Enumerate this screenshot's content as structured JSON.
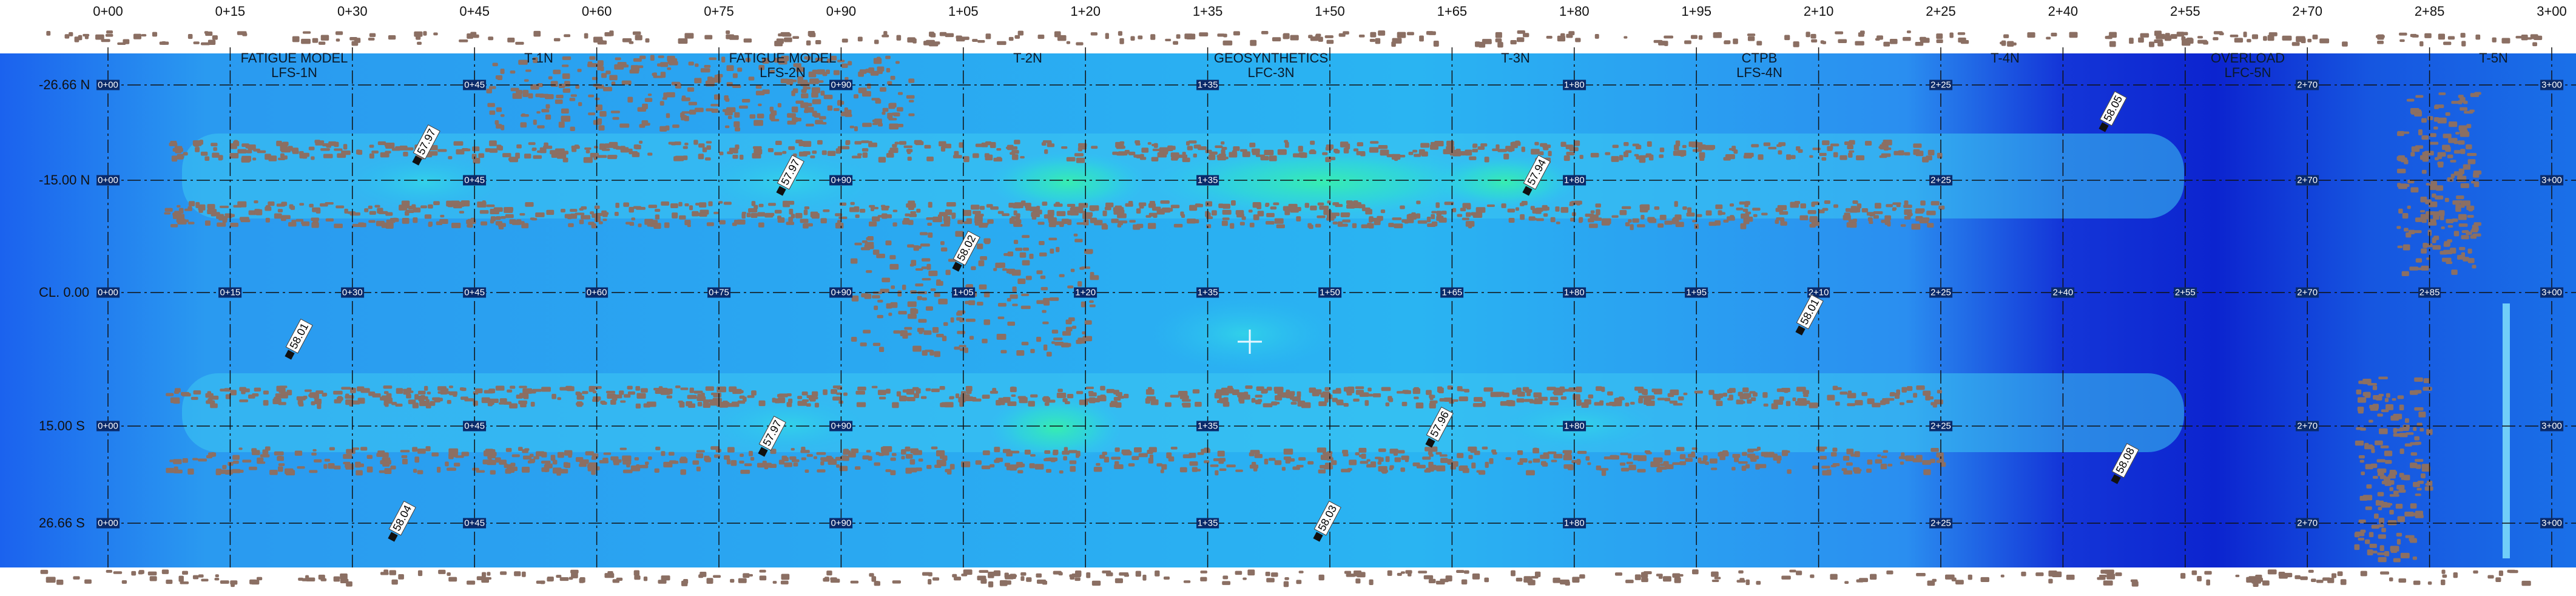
{
  "colors": {
    "bg_blue": "#1e78f0",
    "deep_blue": "#0a28d6",
    "light_cyan": "#27c6f2",
    "peak_green": "#2af0a8",
    "contour": "#8b6f63",
    "grid_line": "#111111"
  },
  "stations": [
    "0+00",
    "0+15",
    "0+30",
    "0+45",
    "0+60",
    "0+75",
    "0+90",
    "1+05",
    "1+20",
    "1+35",
    "1+50",
    "1+65",
    "1+80",
    "1+95",
    "2+10",
    "2+25",
    "2+40",
    "2+55",
    "2+70",
    "2+85",
    "3+00"
  ],
  "rows": [
    "-26.66 N",
    "-15.00 N",
    "CL. 0.00",
    "15.00 S",
    "26.66 S"
  ],
  "sections": [
    {
      "line1": "FATIGUE MODEL",
      "line2": "LFS-1N"
    },
    {
      "line1": "T-1N",
      "line2": ""
    },
    {
      "line1": "FATIGUE MODEL",
      "line2": "LFS-2N"
    },
    {
      "line1": "T-2N",
      "line2": ""
    },
    {
      "line1": "GEOSYNTHETICS",
      "line2": "LFC-3N"
    },
    {
      "line1": "T-3N",
      "line2": ""
    },
    {
      "line1": "CTPB",
      "line2": "LFS-4N"
    },
    {
      "line1": "T-4N",
      "line2": ""
    },
    {
      "line1": "OVERLOAD",
      "line2": "LFC-5N"
    },
    {
      "line1": "T-5N",
      "line2": ""
    }
  ],
  "survey_points": [
    "57.97",
    "57.97",
    "58.02",
    "57.94",
    "58.05",
    "58.01",
    "58.01",
    "57.97",
    "57.96",
    "58.08",
    "58.04",
    "58.03"
  ],
  "grid_tags": {
    "rows_0_4": [
      "0+00",
      "0+45",
      "0+90",
      "1+35",
      "1+80",
      "2+25",
      "2+70",
      "3+00"
    ],
    "row_2": [
      "0+00",
      "0+15",
      "0+30",
      "0+45",
      "0+60",
      "0+75",
      "0+90",
      "1+05",
      "1+20",
      "1+35",
      "1+50",
      "1+65",
      "1+80",
      "1+95",
      "2+10",
      "2+25",
      "2+40",
      "2+55",
      "2+70",
      "2+85",
      "3+00"
    ]
  }
}
